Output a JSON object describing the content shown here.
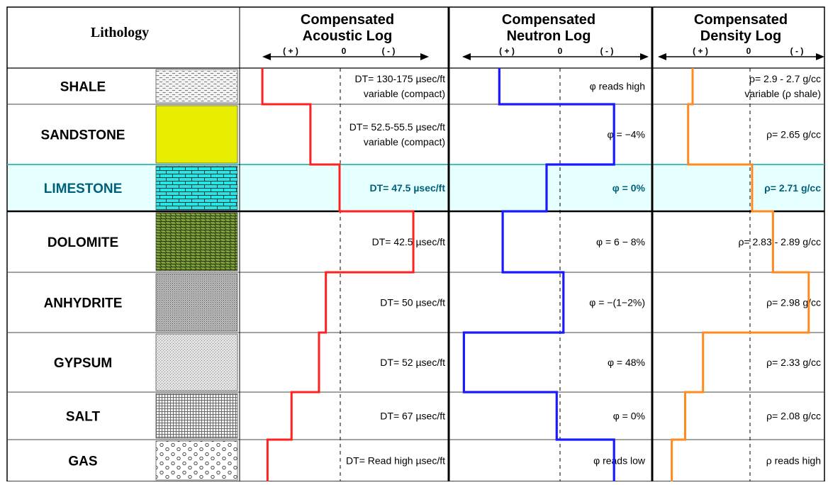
{
  "headers": {
    "lithology": "Lithology",
    "acoustic": [
      "Compensated",
      "Acoustic Log"
    ],
    "neutron": [
      "Compensated",
      "Neutron Log"
    ],
    "density": [
      "Compensated",
      "Density Log"
    ],
    "scale_plus": "( + )",
    "scale_zero": "0",
    "scale_minus": "( - )"
  },
  "rows": [
    {
      "name": "SHALE",
      "pattern": "shale-dashes",
      "acoustic": {
        "label": [
          "DT= 130-175 µsec/ft",
          "variable (compact)"
        ],
        "level": 0.05
      },
      "neutron": {
        "label": [
          "φ reads high"
        ],
        "level": 0.22
      },
      "density": {
        "label": [
          "ρ= 2.9 - 2.7 g/cc",
          "variable (ρ shale)"
        ],
        "level": 0.2
      }
    },
    {
      "name": "SANDSTONE",
      "pattern": "sandstone-yellow",
      "acoustic": {
        "label": [
          "DT= 52.5-55.5 µsec/ft",
          "variable (compact)"
        ],
        "level": 0.33
      },
      "neutron": {
        "label": [
          "φ = −4%"
        ],
        "level": 0.9
      },
      "density": {
        "label": [
          "ρ= 2.65 g/cc"
        ],
        "level": 0.17
      }
    },
    {
      "name": "LIMESTONE",
      "pattern": "limestone-brick",
      "highlight": true,
      "acoustic": {
        "label": [
          "DT= 47.5 µsec/ft"
        ],
        "level": 0.5
      },
      "neutron": {
        "label": [
          "φ = 0%"
        ],
        "level": 0.5
      },
      "density": {
        "label": [
          "ρ= 2.71 g/cc"
        ],
        "level": 0.6
      }
    },
    {
      "name": "DOLOMITE",
      "pattern": "dolomite-rhomb",
      "acoustic": {
        "label": [
          "DT= 42.5 µsec/ft"
        ],
        "level": 0.93
      },
      "neutron": {
        "label": [
          "φ = 6 − 8%"
        ],
        "level": 0.24
      },
      "density": {
        "label": [
          "ρ= 2.83 - 2.89 g/cc"
        ],
        "level": 0.74
      }
    },
    {
      "name": "ANHYDRITE",
      "pattern": "anhydrite-dots",
      "acoustic": {
        "label": [
          "DT= 50 µsec/ft"
        ],
        "level": 0.42
      },
      "neutron": {
        "label": [
          "φ = −(1−2%)"
        ],
        "level": 0.6
      },
      "density": {
        "label": [
          "ρ= 2.98 g/cc"
        ],
        "level": 0.98
      }
    },
    {
      "name": "GYPSUM",
      "pattern": "gypsum-stipple",
      "acoustic": {
        "label": [
          "DT= 52 µsec/ft"
        ],
        "level": 0.38
      },
      "neutron": {
        "label": [
          "φ = 48%"
        ],
        "level": 0.01
      },
      "density": {
        "label": [
          "ρ= 2.33 g/cc"
        ],
        "level": 0.27
      }
    },
    {
      "name": "SALT",
      "pattern": "salt-grid",
      "acoustic": {
        "label": [
          "DT= 67 µsec/ft"
        ],
        "level": 0.22
      },
      "neutron": {
        "label": [
          "φ = 0%"
        ],
        "level": 0.56
      },
      "density": {
        "label": [
          "ρ= 2.08 g/cc"
        ],
        "level": 0.15
      }
    },
    {
      "name": "GAS",
      "pattern": "gas-circles",
      "acoustic": {
        "label": [
          "DT= Read high µsec/ft"
        ],
        "level": 0.08
      },
      "neutron": {
        "label": [
          "φ reads low"
        ],
        "level": 0.9
      },
      "density": {
        "label": [
          "ρ reads high"
        ],
        "level": 0.06
      }
    }
  ],
  "colors": {
    "acoustic": "#ff2020",
    "neutron": "#1a1aff",
    "density": "#ff8a20",
    "limestone_text": "#00607a",
    "limestone_row": "#e6ffff",
    "limestone_border": "#2bb8b0"
  }
}
